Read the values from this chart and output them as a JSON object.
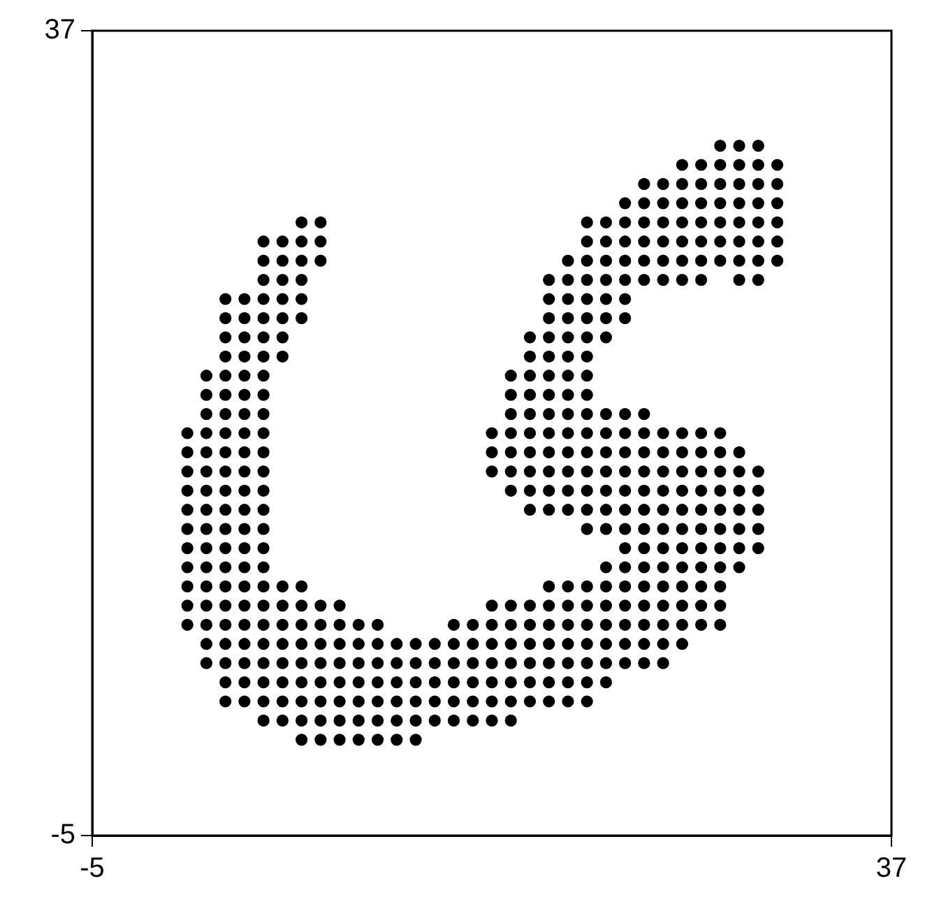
{
  "chart_data": {
    "type": "scatter",
    "xlim": [
      -5,
      37
    ],
    "ylim": [
      -5,
      37
    ],
    "xticks": [
      -5,
      37
    ],
    "yticks": [
      -5,
      37
    ],
    "marker": "circle",
    "series": [
      {
        "color": "#000000",
        "x": [
          28,
          29,
          30
        ],
        "values": [
          31,
          31,
          31
        ]
      },
      {
        "color": "#000000",
        "x": [
          26,
          27,
          28,
          29,
          30,
          31
        ],
        "values": [
          30,
          30,
          30,
          30,
          30,
          30
        ]
      },
      {
        "color": "#000000",
        "x": [
          24,
          25,
          26,
          27,
          28,
          29,
          30,
          31
        ],
        "values": [
          29,
          29,
          29,
          29,
          29,
          29,
          29,
          29
        ]
      },
      {
        "color": "#000000",
        "x": [
          23,
          24,
          25,
          26,
          27,
          28,
          29,
          30,
          31
        ],
        "values": [
          28,
          28,
          28,
          28,
          28,
          28,
          28,
          28,
          28
        ]
      },
      {
        "color": "#000000",
        "x": [
          6,
          7,
          21,
          22,
          23,
          24,
          25,
          26,
          27,
          28,
          29,
          30,
          31
        ],
        "values": [
          27,
          27,
          27,
          27,
          27,
          27,
          27,
          27,
          27,
          27,
          27,
          27,
          27
        ]
      },
      {
        "color": "#000000",
        "x": [
          4,
          5,
          6,
          7,
          21,
          22,
          23,
          24,
          25,
          26,
          27,
          28,
          29,
          30,
          31
        ],
        "values": [
          26,
          26,
          26,
          26,
          26,
          26,
          26,
          26,
          26,
          26,
          26,
          26,
          26,
          26,
          26
        ]
      },
      {
        "color": "#000000",
        "x": [
          4,
          5,
          6,
          7,
          20,
          21,
          22,
          23,
          24,
          25,
          26,
          27,
          28,
          29,
          30,
          31
        ],
        "values": [
          25,
          25,
          25,
          25,
          25,
          25,
          25,
          25,
          25,
          25,
          25,
          25,
          25,
          25,
          25,
          25
        ]
      },
      {
        "color": "#000000",
        "x": [
          4,
          5,
          6,
          19,
          20,
          21,
          22,
          23,
          24,
          25,
          26,
          27,
          29,
          30
        ],
        "values": [
          24,
          24,
          24,
          24,
          24,
          24,
          24,
          24,
          24,
          24,
          24,
          24,
          24,
          24
        ]
      },
      {
        "color": "#000000",
        "x": [
          2,
          3,
          4,
          5,
          6,
          19,
          20,
          21,
          22,
          23
        ],
        "values": [
          23,
          23,
          23,
          23,
          23,
          23,
          23,
          23,
          23,
          23
        ]
      },
      {
        "color": "#000000",
        "x": [
          2,
          3,
          4,
          5,
          6,
          19,
          20,
          21,
          22,
          23
        ],
        "values": [
          22,
          22,
          22,
          22,
          22,
          22,
          22,
          22,
          22,
          22
        ]
      },
      {
        "color": "#000000",
        "x": [
          2,
          3,
          4,
          5,
          18,
          19,
          20,
          21,
          22
        ],
        "values": [
          21,
          21,
          21,
          21,
          21,
          21,
          21,
          21,
          21
        ]
      },
      {
        "color": "#000000",
        "x": [
          2,
          3,
          4,
          5,
          18,
          19,
          20,
          21
        ],
        "values": [
          20,
          20,
          20,
          20,
          20,
          20,
          20,
          20
        ]
      },
      {
        "color": "#000000",
        "x": [
          1,
          2,
          3,
          4,
          17,
          18,
          19,
          20,
          21
        ],
        "values": [
          19,
          19,
          19,
          19,
          19,
          19,
          19,
          19,
          19
        ]
      },
      {
        "color": "#000000",
        "x": [
          1,
          2,
          3,
          4,
          17,
          18,
          19,
          20,
          21
        ],
        "values": [
          18,
          18,
          18,
          18,
          18,
          18,
          18,
          18,
          18
        ]
      },
      {
        "color": "#000000",
        "x": [
          1,
          2,
          3,
          4,
          17,
          18,
          19,
          20,
          21,
          22,
          23,
          24
        ],
        "values": [
          17,
          17,
          17,
          17,
          17,
          17,
          17,
          17,
          17,
          17,
          17,
          17
        ]
      },
      {
        "color": "#000000",
        "x": [
          0,
          1,
          2,
          3,
          4,
          16,
          17,
          18,
          19,
          20,
          21,
          22,
          23,
          24,
          25,
          26,
          27,
          28
        ],
        "values": [
          16,
          16,
          16,
          16,
          16,
          16,
          16,
          16,
          16,
          16,
          16,
          16,
          16,
          16,
          16,
          16,
          16,
          16
        ]
      },
      {
        "color": "#000000",
        "x": [
          0,
          1,
          2,
          3,
          4,
          16,
          17,
          18,
          19,
          20,
          21,
          22,
          23,
          24,
          25,
          26,
          27,
          28,
          29
        ],
        "values": [
          15,
          15,
          15,
          15,
          15,
          15,
          15,
          15,
          15,
          15,
          15,
          15,
          15,
          15,
          15,
          15,
          15,
          15,
          15
        ]
      },
      {
        "color": "#000000",
        "x": [
          0,
          1,
          2,
          3,
          4,
          16,
          17,
          18,
          19,
          20,
          21,
          22,
          23,
          24,
          25,
          26,
          27,
          28,
          29,
          30
        ],
        "values": [
          14,
          14,
          14,
          14,
          14,
          14,
          14,
          14,
          14,
          14,
          14,
          14,
          14,
          14,
          14,
          14,
          14,
          14,
          14,
          14
        ]
      },
      {
        "color": "#000000",
        "x": [
          0,
          1,
          2,
          3,
          4,
          17,
          18,
          19,
          20,
          21,
          22,
          23,
          24,
          25,
          26,
          27,
          28,
          29,
          30
        ],
        "values": [
          13,
          13,
          13,
          13,
          13,
          13,
          13,
          13,
          13,
          13,
          13,
          13,
          13,
          13,
          13,
          13,
          13,
          13,
          13
        ]
      },
      {
        "color": "#000000",
        "x": [
          0,
          1,
          2,
          3,
          4,
          18,
          19,
          20,
          21,
          22,
          23,
          24,
          25,
          26,
          27,
          28,
          29,
          30
        ],
        "values": [
          12,
          12,
          12,
          12,
          12,
          12,
          12,
          12,
          12,
          12,
          12,
          12,
          12,
          12,
          12,
          12,
          12,
          12
        ]
      },
      {
        "color": "#000000",
        "x": [
          0,
          1,
          2,
          3,
          4,
          21,
          22,
          23,
          24,
          25,
          26,
          27,
          28,
          29,
          30
        ],
        "values": [
          11,
          11,
          11,
          11,
          11,
          11,
          11,
          11,
          11,
          11,
          11,
          11,
          11,
          11,
          11
        ]
      },
      {
        "color": "#000000",
        "x": [
          0,
          1,
          2,
          3,
          4,
          23,
          24,
          25,
          26,
          27,
          28,
          29,
          30
        ],
        "values": [
          10,
          10,
          10,
          10,
          10,
          10,
          10,
          10,
          10,
          10,
          10,
          10,
          10
        ]
      },
      {
        "color": "#000000",
        "x": [
          0,
          1,
          2,
          3,
          4,
          22,
          23,
          24,
          25,
          26,
          27,
          28,
          29
        ],
        "values": [
          9,
          9,
          9,
          9,
          9,
          9,
          9,
          9,
          9,
          9,
          9,
          9,
          9
        ]
      },
      {
        "color": "#000000",
        "x": [
          0,
          1,
          2,
          3,
          4,
          5,
          6,
          19,
          20,
          21,
          22,
          23,
          24,
          25,
          26,
          27,
          28
        ],
        "values": [
          8,
          8,
          8,
          8,
          8,
          8,
          8,
          8,
          8,
          8,
          8,
          8,
          8,
          8,
          8,
          8,
          8
        ]
      },
      {
        "color": "#000000",
        "x": [
          0,
          1,
          2,
          3,
          4,
          5,
          6,
          7,
          8,
          16,
          17,
          18,
          19,
          20,
          21,
          22,
          23,
          24,
          25,
          26,
          27,
          28
        ],
        "values": [
          7,
          7,
          7,
          7,
          7,
          7,
          7,
          7,
          7,
          7,
          7,
          7,
          7,
          7,
          7,
          7,
          7,
          7,
          7,
          7,
          7,
          7
        ]
      },
      {
        "color": "#000000",
        "x": [
          0,
          1,
          2,
          3,
          4,
          5,
          6,
          7,
          8,
          9,
          10,
          14,
          15,
          16,
          17,
          18,
          19,
          20,
          21,
          22,
          23,
          24,
          25,
          26,
          27,
          28
        ],
        "values": [
          6,
          6,
          6,
          6,
          6,
          6,
          6,
          6,
          6,
          6,
          6,
          6,
          6,
          6,
          6,
          6,
          6,
          6,
          6,
          6,
          6,
          6,
          6,
          6,
          6,
          6
        ]
      },
      {
        "color": "#000000",
        "x": [
          1,
          2,
          3,
          4,
          5,
          6,
          7,
          8,
          9,
          10,
          11,
          12,
          13,
          14,
          15,
          16,
          17,
          18,
          19,
          20,
          21,
          22,
          23,
          24,
          25,
          26
        ],
        "values": [
          5,
          5,
          5,
          5,
          5,
          5,
          5,
          5,
          5,
          5,
          5,
          5,
          5,
          5,
          5,
          5,
          5,
          5,
          5,
          5,
          5,
          5,
          5,
          5,
          5,
          5
        ]
      },
      {
        "color": "#000000",
        "x": [
          1,
          2,
          3,
          4,
          5,
          6,
          7,
          8,
          9,
          10,
          11,
          12,
          13,
          14,
          15,
          16,
          17,
          18,
          19,
          20,
          21,
          22,
          23,
          24,
          25
        ],
        "values": [
          4,
          4,
          4,
          4,
          4,
          4,
          4,
          4,
          4,
          4,
          4,
          4,
          4,
          4,
          4,
          4,
          4,
          4,
          4,
          4,
          4,
          4,
          4,
          4,
          4
        ]
      },
      {
        "color": "#000000",
        "x": [
          2,
          3,
          4,
          5,
          6,
          7,
          8,
          9,
          10,
          11,
          12,
          13,
          14,
          15,
          16,
          17,
          18,
          19,
          20,
          21,
          22
        ],
        "values": [
          3,
          3,
          3,
          3,
          3,
          3,
          3,
          3,
          3,
          3,
          3,
          3,
          3,
          3,
          3,
          3,
          3,
          3,
          3,
          3,
          3
        ]
      },
      {
        "color": "#000000",
        "x": [
          2,
          3,
          4,
          5,
          6,
          7,
          8,
          9,
          10,
          11,
          12,
          13,
          14,
          15,
          16,
          17,
          18,
          19,
          20,
          21
        ],
        "values": [
          2,
          2,
          2,
          2,
          2,
          2,
          2,
          2,
          2,
          2,
          2,
          2,
          2,
          2,
          2,
          2,
          2,
          2,
          2,
          2
        ]
      },
      {
        "color": "#000000",
        "x": [
          4,
          5,
          6,
          7,
          8,
          9,
          10,
          11,
          12,
          13,
          14,
          15,
          16,
          17
        ],
        "values": [
          1,
          1,
          1,
          1,
          1,
          1,
          1,
          1,
          1,
          1,
          1,
          1,
          1,
          1
        ]
      },
      {
        "color": "#000000",
        "x": [
          6,
          7,
          8,
          9,
          10,
          11,
          12
        ],
        "values": [
          0,
          0,
          0,
          0,
          0,
          0,
          0
        ]
      }
    ]
  }
}
